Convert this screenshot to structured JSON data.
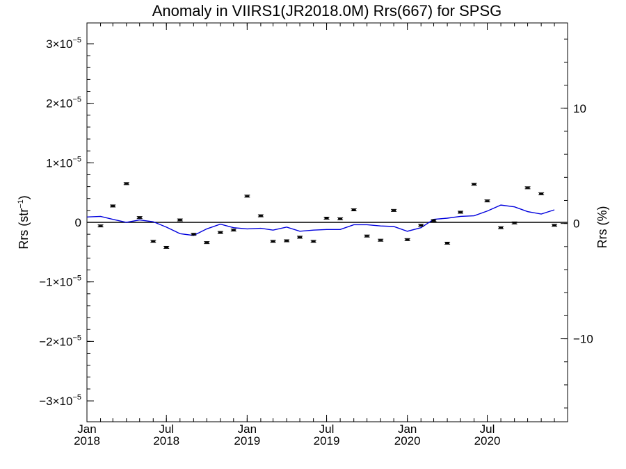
{
  "chart_data": {
    "type": "scatter",
    "title": "Anomaly in VIIRS1(JR2018.0M) Rrs(667) for SPSG",
    "ylabel": "Rrs (str",
    "ylabel_sup": "−1",
    "ylabel_close": ")",
    "y2label": "Rrs (%)",
    "x_range": [
      "2018-01-01",
      "2020-12-31"
    ],
    "x_ticks": [
      {
        "date": "2018-01-01",
        "month": "Jan",
        "year": "2018"
      },
      {
        "date": "2018-07-01",
        "month": "Jul",
        "year": "2018"
      },
      {
        "date": "2019-01-01",
        "month": "Jan",
        "year": "2019"
      },
      {
        "date": "2019-07-01",
        "month": "Jul",
        "year": "2019"
      },
      {
        "date": "2020-01-01",
        "month": "Jan",
        "year": "2020"
      },
      {
        "date": "2020-07-01",
        "month": "Jul",
        "year": "2020"
      }
    ],
    "ylim": [
      -3.35e-05,
      3.35e-05
    ],
    "y_ticks": [
      {
        "value": 3e-05,
        "mant": "3×10",
        "exp": "−5"
      },
      {
        "value": 2e-05,
        "mant": "2×10",
        "exp": "−5"
      },
      {
        "value": 1e-05,
        "mant": "1×10",
        "exp": "−5"
      },
      {
        "value": 0,
        "mant": "0",
        "exp": ""
      },
      {
        "value": -1e-05,
        "mant": "−1×10",
        "exp": "−5"
      },
      {
        "value": -2e-05,
        "mant": "−2×10",
        "exp": "−5"
      },
      {
        "value": -3e-05,
        "mant": "−3×10",
        "exp": "−5"
      }
    ],
    "y2lim": [
      -17.2,
      17.4
    ],
    "y2_ticks": [
      {
        "value": 10,
        "label": "10"
      },
      {
        "value": 0,
        "label": "0"
      },
      {
        "value": -10,
        "label": "−10"
      }
    ],
    "grid": false,
    "zero_line": true,
    "series": [
      {
        "kind": "points_with_error_bars",
        "color": "#000000",
        "x": [
          "2018-02-01",
          "2018-03-01",
          "2018-04-01",
          "2018-05-01",
          "2018-06-01",
          "2018-07-01",
          "2018-08-01",
          "2018-09-01",
          "2018-10-01",
          "2018-11-01",
          "2018-12-01",
          "2019-01-01",
          "2019-02-01",
          "2019-03-01",
          "2019-04-01",
          "2019-05-01",
          "2019-06-01",
          "2019-07-01",
          "2019-08-01",
          "2019-09-01",
          "2019-10-01",
          "2019-11-01",
          "2019-12-01",
          "2020-01-01",
          "2020-02-01",
          "2020-03-01",
          "2020-04-01",
          "2020-05-01",
          "2020-06-01",
          "2020-07-01",
          "2020-08-01",
          "2020-09-01",
          "2020-10-01",
          "2020-11-01",
          "2020-12-01"
        ],
        "values": [
          -6e-07,
          2.75e-06,
          6.5e-06,
          8e-07,
          -3.2e-06,
          -4.2e-06,
          4e-07,
          -2e-06,
          -3.4e-06,
          -1.7e-06,
          -1.3e-06,
          4.4e-06,
          1.1e-06,
          -3.2e-06,
          -3.1e-06,
          -2.5e-06,
          -3.2e-06,
          7e-07,
          6e-07,
          2.1e-06,
          -2.3e-06,
          -3e-06,
          2e-06,
          -2.9e-06,
          -5e-07,
          3e-07,
          -3.5e-06,
          1.7e-06,
          6.4e-06,
          3.6e-06,
          -9e-07,
          -1e-07,
          5.8e-06,
          4.8e-06,
          -5e-07
        ]
      },
      {
        "kind": "line",
        "color": "#0000dd",
        "x": [
          "2018-01-01",
          "2018-02-01",
          "2018-03-01",
          "2018-04-01",
          "2018-05-01",
          "2018-06-01",
          "2018-07-01",
          "2018-08-01",
          "2018-09-01",
          "2018-10-01",
          "2018-11-01",
          "2018-12-01",
          "2019-01-01",
          "2019-02-01",
          "2019-03-01",
          "2019-04-01",
          "2019-05-01",
          "2019-06-01",
          "2019-07-01",
          "2019-08-01",
          "2019-09-01",
          "2019-10-01",
          "2019-11-01",
          "2019-12-01",
          "2020-01-01",
          "2020-02-01",
          "2020-03-01",
          "2020-04-01",
          "2020-05-01",
          "2020-06-01",
          "2020-07-01",
          "2020-08-01",
          "2020-09-01",
          "2020-10-01",
          "2020-11-01",
          "2020-12-01"
        ],
        "values": [
          9e-07,
          1e-06,
          5e-07,
          0,
          4e-07,
          1e-07,
          -8e-07,
          -1.9e-06,
          -2.2e-06,
          -1.1e-06,
          -3e-07,
          -9e-07,
          -1.1e-06,
          -1e-06,
          -1.3e-06,
          -8e-07,
          -1.5e-06,
          -1.3e-06,
          -1.2e-06,
          -1.2e-06,
          -4e-07,
          -4e-07,
          -6e-07,
          -7e-07,
          -1.5e-06,
          -9e-07,
          5e-07,
          7e-07,
          1e-06,
          1.1e-06,
          1.9e-06,
          2.9e-06,
          2.6e-06,
          1.8e-06,
          1.4e-06,
          2.1e-06
        ]
      }
    ]
  }
}
